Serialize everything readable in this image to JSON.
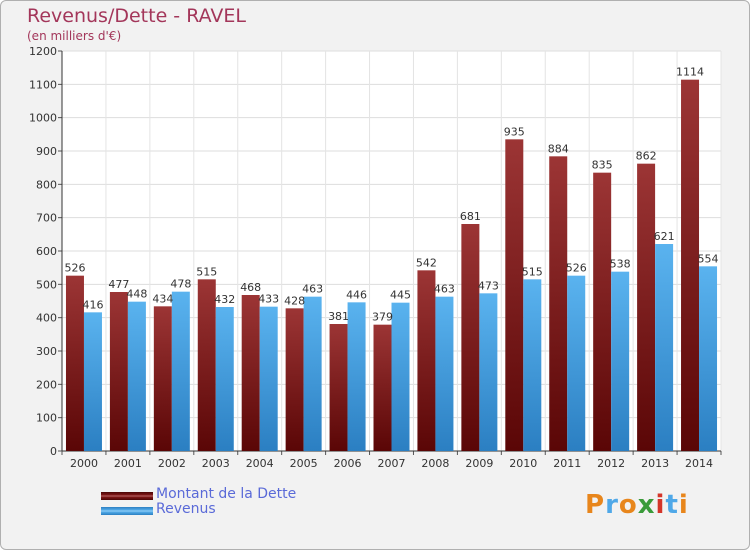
{
  "header": {
    "title": "Revenus/Dette - RAVEL",
    "subtitle": "(en milliers d'€)"
  },
  "chart_data": {
    "type": "bar",
    "title": "Revenus/Dette - RAVEL",
    "subtitle": "(en milliers d'€)",
    "xlabel": "",
    "ylabel": "",
    "ylim": [
      0,
      1200
    ],
    "yticks": [
      0,
      100,
      200,
      300,
      400,
      500,
      600,
      700,
      800,
      900,
      1000,
      1100,
      1200
    ],
    "grid": true,
    "categories": [
      "2000",
      "2001",
      "2002",
      "2003",
      "2004",
      "2005",
      "2006",
      "2007",
      "2008",
      "2009",
      "2010",
      "2011",
      "2012",
      "2013",
      "2014"
    ],
    "series": [
      {
        "name": "Montant de la Dette",
        "color": "#8b1a1a",
        "values": [
          526,
          477,
          434,
          515,
          468,
          428,
          381,
          379,
          542,
          681,
          935,
          884,
          835,
          862,
          1114
        ]
      },
      {
        "name": "Revenus",
        "color": "#4fa8e8",
        "values": [
          416,
          448,
          478,
          432,
          433,
          463,
          446,
          445,
          463,
          473,
          515,
          526,
          538,
          621,
          554
        ]
      }
    ],
    "legend": "bottom-left"
  },
  "legend": {
    "items": [
      {
        "label": "Montant de la Dette",
        "color": "#8b1a1a"
      },
      {
        "label": "Revenus",
        "color": "#4fa8e8"
      }
    ]
  },
  "logo": {
    "letters": [
      "P",
      "r",
      "o",
      "x",
      "i",
      "t",
      "i"
    ],
    "colors": [
      "#e8861c",
      "#4fa8e8",
      "#e8861c",
      "#3a9b3a",
      "#d4352a",
      "#4fa8e8",
      "#e8861c"
    ]
  }
}
